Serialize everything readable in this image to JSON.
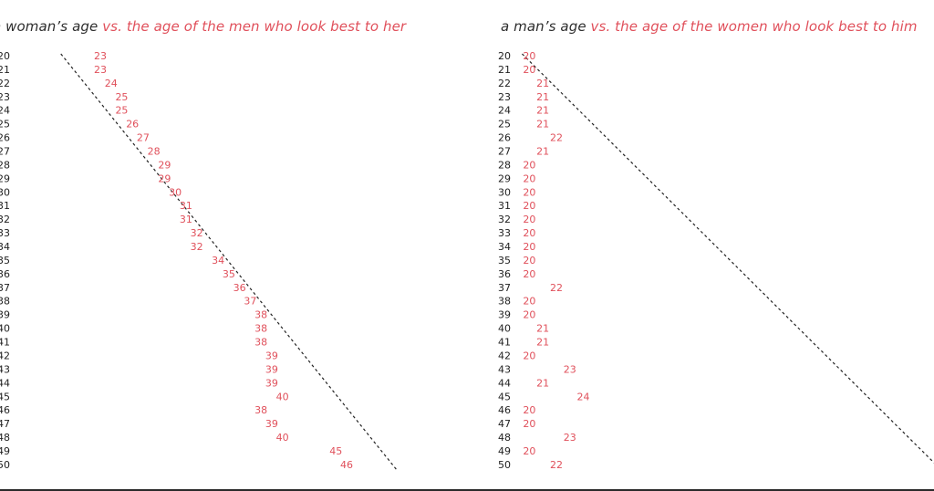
{
  "colors": {
    "age_label": "#222222",
    "value": "#e0505b",
    "diagonal": "#222222"
  },
  "chart_data": [
    {
      "type": "table",
      "title_prefix": "a woman’s age",
      "title_suffix": "vs. the age of the men who look best to her",
      "ages": [
        20,
        21,
        22,
        23,
        24,
        25,
        26,
        27,
        28,
        29,
        30,
        31,
        32,
        33,
        34,
        35,
        36,
        37,
        38,
        39,
        40,
        41,
        42,
        43,
        44,
        45,
        46,
        47,
        48,
        49,
        50
      ],
      "values": [
        23,
        23,
        24,
        25,
        25,
        26,
        27,
        28,
        29,
        29,
        30,
        31,
        31,
        32,
        32,
        34,
        35,
        36,
        37,
        38,
        38,
        38,
        39,
        39,
        39,
        40,
        38,
        39,
        40,
        45,
        46
      ],
      "xlim": [
        19,
        50
      ],
      "diagonal_reference": "x = y"
    },
    {
      "type": "table",
      "title_prefix": "a man’s age",
      "title_suffix": "vs. the age of the women who look best to him",
      "ages": [
        20,
        21,
        22,
        23,
        24,
        25,
        26,
        27,
        28,
        29,
        30,
        31,
        32,
        33,
        34,
        35,
        36,
        37,
        38,
        39,
        40,
        41,
        42,
        43,
        44,
        45,
        46,
        47,
        48,
        49,
        50
      ],
      "values": [
        20,
        20,
        21,
        21,
        21,
        21,
        22,
        21,
        20,
        20,
        20,
        20,
        20,
        20,
        20,
        20,
        20,
        22,
        20,
        20,
        21,
        21,
        20,
        23,
        21,
        24,
        20,
        20,
        23,
        20,
        22
      ],
      "xlim": [
        19.5,
        50
      ],
      "diagonal_reference": "x = y"
    }
  ]
}
